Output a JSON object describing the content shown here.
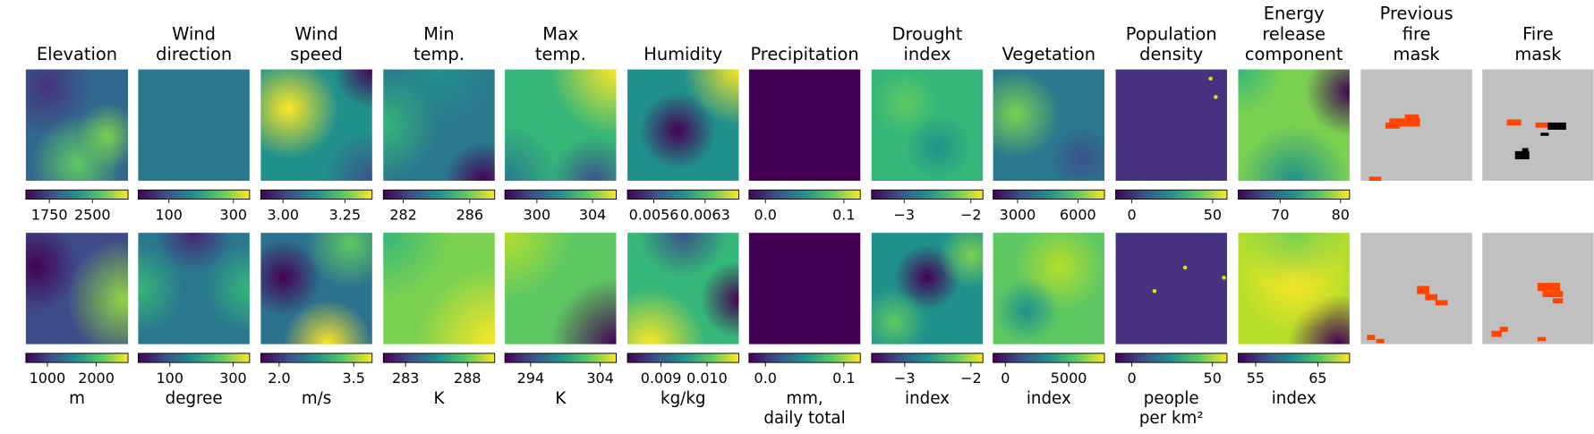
{
  "columns": [
    {
      "title": [
        "Elevation"
      ],
      "unit": [
        "m"
      ],
      "colorbars": [
        {
          "lim": [
            1340,
            3120
          ],
          "ticks": [
            1750,
            2500
          ]
        },
        {
          "lim": [
            560,
            2650
          ],
          "ticks": [
            1000,
            2000
          ]
        }
      ]
    },
    {
      "title": [
        "Wind",
        "direction"
      ],
      "unit": [
        "degree"
      ],
      "colorbars": [
        {
          "lim": [
            5,
            350
          ],
          "ticks": [
            100,
            300
          ]
        },
        {
          "lim": [
            0,
            352
          ],
          "ticks": [
            100,
            300
          ]
        }
      ]
    },
    {
      "title": [
        "Wind",
        "speed"
      ],
      "unit": [
        "m/s"
      ],
      "colorbars": [
        {
          "lim": [
            2.91,
            3.36
          ],
          "ticks": [
            {
              "value": 3,
              "label": "3.00"
            },
            3.25
          ]
        },
        {
          "lim": [
            1.63,
            3.87
          ],
          "ticks": [
            {
              "value": 2,
              "label": "2.0"
            },
            3.5
          ]
        }
      ]
    },
    {
      "title": [
        "Min",
        "temp."
      ],
      "unit": [
        "K"
      ],
      "colorbars": [
        {
          "lim": [
            280.8,
            287.5
          ],
          "ticks": [
            282,
            286
          ]
        },
        {
          "lim": [
            281.2,
            290.2
          ],
          "ticks": [
            283,
            288
          ]
        }
      ]
    },
    {
      "title": [
        "Max",
        "temp."
      ],
      "unit": [
        "K"
      ],
      "colorbars": [
        {
          "lim": [
            297.7,
            305.7
          ],
          "ticks": [
            300,
            304
          ]
        },
        {
          "lim": [
            290.3,
            306.3
          ],
          "ticks": [
            294,
            304
          ]
        }
      ]
    },
    {
      "title": [
        "Humidity"
      ],
      "unit": [
        "kg/kg"
      ],
      "colorbars": [
        {
          "lim": [
            0.00524,
            0.00676
          ],
          "ticks": [
            0.0056,
            0.0063
          ]
        },
        {
          "lim": [
            0.00827,
            0.01069
          ],
          "ticks": [
            0.009,
            {
              "value": 0.01,
              "label": "0.010"
            }
          ]
        }
      ]
    },
    {
      "title": [
        "Precipitation"
      ],
      "unit": [
        "mm,",
        "daily total"
      ],
      "colorbars": [
        {
          "lim": [
            -0.021,
            0.121
          ],
          "ticks": [
            {
              "value": 0,
              "label": "0.0"
            },
            0.1
          ]
        },
        {
          "lim": [
            -0.021,
            0.121
          ],
          "ticks": [
            {
              "value": 0,
              "label": "0.0"
            },
            0.1
          ]
        }
      ]
    },
    {
      "title": [
        "Drought",
        "index"
      ],
      "unit": [
        "index"
      ],
      "colorbars": [
        {
          "lim": [
            -3.49,
            -1.82
          ],
          "ticks": [
            {
              "value": -3,
              "label": "−3"
            },
            {
              "value": -2,
              "label": "−2"
            }
          ]
        },
        {
          "lim": [
            -3.5,
            -1.82
          ],
          "ticks": [
            {
              "value": -3,
              "label": "−3"
            },
            {
              "value": -2,
              "label": "−2"
            }
          ]
        }
      ]
    },
    {
      "title": [
        "Vegetation"
      ],
      "unit": [
        "index"
      ],
      "colorbars": [
        {
          "lim": [
            1780,
            7320
          ],
          "ticks": [
            3000,
            6000
          ]
        },
        {
          "lim": [
            -970,
            7820
          ],
          "ticks": [
            0,
            5000
          ]
        }
      ]
    },
    {
      "title": [
        "Population",
        "density"
      ],
      "unit": [
        "people",
        "per km²"
      ],
      "colorbars": [
        {
          "lim": [
            -10,
            58.9
          ],
          "ticks": [
            0,
            50
          ]
        },
        {
          "lim": [
            -10,
            59
          ],
          "ticks": [
            0,
            50
          ]
        }
      ]
    },
    {
      "title": [
        "Energy",
        "release",
        "component"
      ],
      "unit": [
        "index"
      ],
      "colorbars": [
        {
          "lim": [
            63.05,
            81.5
          ],
          "ticks": [
            70,
            80
          ]
        },
        {
          "lim": [
            52.2,
            70.1
          ],
          "ticks": [
            55,
            65
          ]
        }
      ]
    },
    {
      "title": [
        "Previous",
        "fire",
        "mask"
      ]
    },
    {
      "title": [
        "Fire",
        "mask"
      ]
    }
  ]
}
